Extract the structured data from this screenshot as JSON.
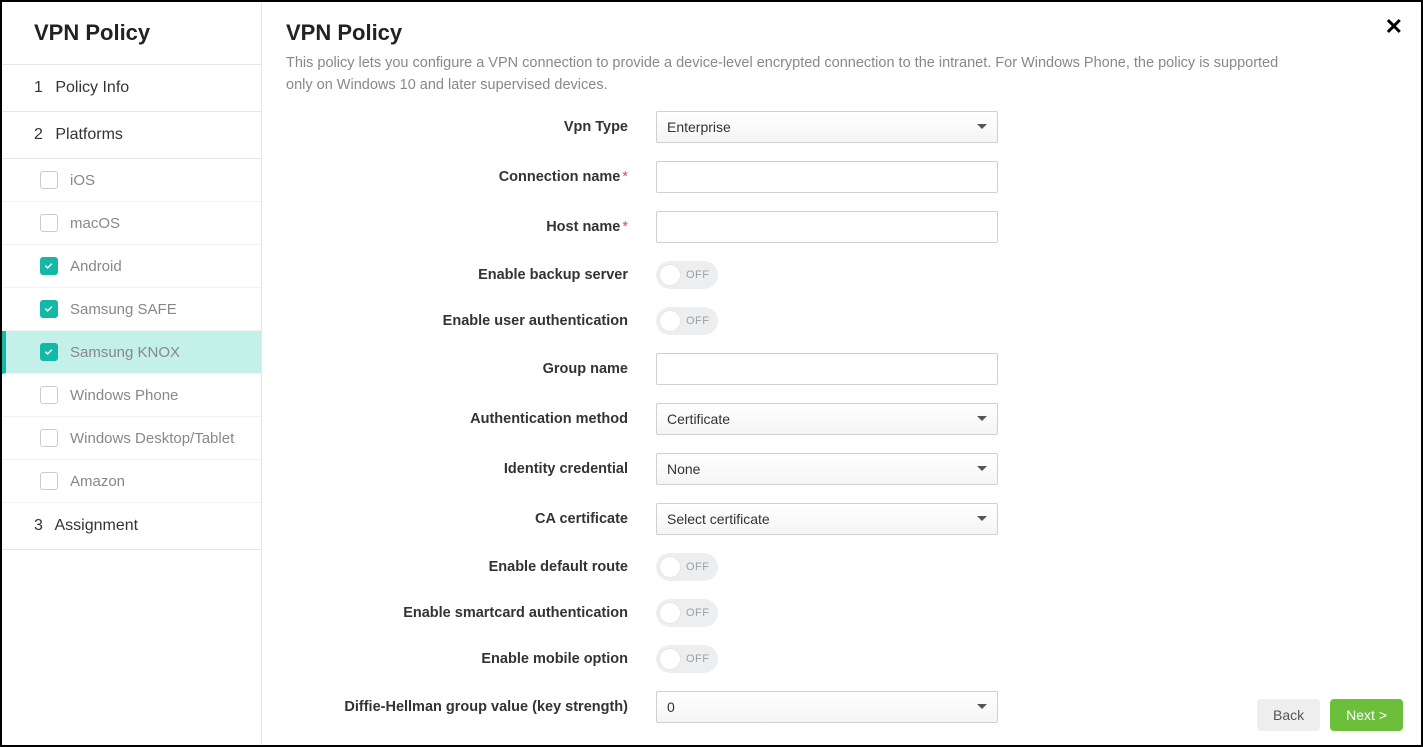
{
  "sidebar": {
    "title": "VPN Policy",
    "steps": {
      "policy_info": {
        "num": "1",
        "label": "Policy Info"
      },
      "platforms": {
        "num": "2",
        "label": "Platforms"
      },
      "assignment": {
        "num": "3",
        "label": "Assignment"
      }
    },
    "platforms": [
      {
        "label": "iOS",
        "checked": false,
        "active": false
      },
      {
        "label": "macOS",
        "checked": false,
        "active": false
      },
      {
        "label": "Android",
        "checked": true,
        "active": false
      },
      {
        "label": "Samsung SAFE",
        "checked": true,
        "active": false
      },
      {
        "label": "Samsung KNOX",
        "checked": true,
        "active": true
      },
      {
        "label": "Windows Phone",
        "checked": false,
        "active": false
      },
      {
        "label": "Windows Desktop/Tablet",
        "checked": false,
        "active": false
      },
      {
        "label": "Amazon",
        "checked": false,
        "active": false
      }
    ]
  },
  "main": {
    "title": "VPN Policy",
    "description": "This policy lets you configure a VPN connection to provide a device-level encrypted connection to the intranet. For Windows Phone, the policy is supported only on Windows 10 and later supervised devices."
  },
  "fields": {
    "vpn_type": {
      "label": "Vpn Type",
      "value": "Enterprise",
      "type": "select"
    },
    "connection_name": {
      "label": "Connection name",
      "required": true,
      "value": "",
      "type": "text"
    },
    "host_name": {
      "label": "Host name",
      "required": true,
      "value": "",
      "type": "text"
    },
    "enable_backup": {
      "label": "Enable backup server",
      "value": "OFF",
      "type": "toggle"
    },
    "enable_user_auth": {
      "label": "Enable user authentication",
      "value": "OFF",
      "type": "toggle"
    },
    "group_name": {
      "label": "Group name",
      "value": "",
      "type": "text"
    },
    "auth_method": {
      "label": "Authentication method",
      "value": "Certificate",
      "type": "select"
    },
    "identity_credential": {
      "label": "Identity credential",
      "value": "None",
      "type": "select"
    },
    "ca_certificate": {
      "label": "CA certificate",
      "value": "Select certificate",
      "type": "select"
    },
    "enable_default_route": {
      "label": "Enable default route",
      "value": "OFF",
      "type": "toggle"
    },
    "enable_smartcard": {
      "label": "Enable smartcard authentication",
      "value": "OFF",
      "type": "toggle"
    },
    "enable_mobile": {
      "label": "Enable mobile option",
      "value": "OFF",
      "type": "toggle"
    },
    "dh_group": {
      "label": "Diffie-Hellman group value (key strength)",
      "value": "0",
      "type": "select"
    }
  },
  "footer": {
    "back": "Back",
    "next": "Next >"
  },
  "colors": {
    "accent_teal": "#14b8a6",
    "accent_teal_light": "#c3f0e8",
    "primary_green": "#6bbf3b",
    "border_light": "#e6e6e6",
    "text_muted": "#888888",
    "text_dark": "#333333",
    "required_red": "#d9534f",
    "toggle_bg": "#eceeef"
  }
}
